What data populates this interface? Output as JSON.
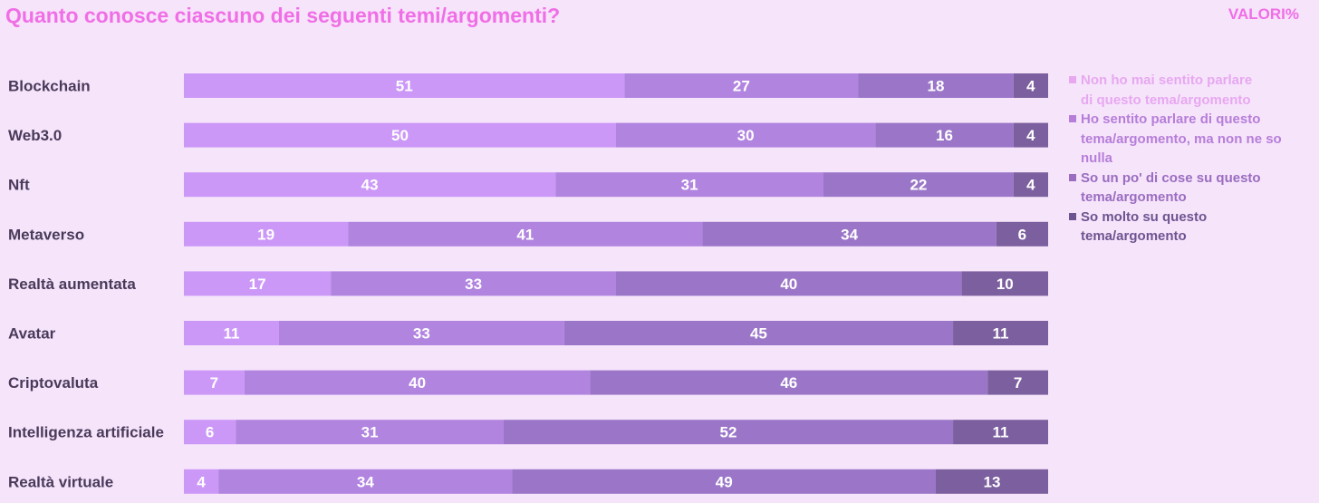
{
  "title": "Quanto conosce ciascuno dei seguenti temi/argomenti?",
  "unit_label": "VALORI%",
  "colors": {
    "title": "#f06ee6",
    "background": "#f6e4fb",
    "category_label": "#4a3a5a",
    "segment_label": "#ffffff"
  },
  "chart_data": {
    "type": "bar",
    "orientation": "horizontal",
    "stacked": true,
    "categories": [
      "Blockchain",
      "Web3.0",
      "Nft",
      "Metaverso",
      "Realtà aumentata",
      "Avatar",
      "Criptovaluta",
      "Intelligenza artificiale",
      "Realtà virtuale"
    ],
    "series": [
      {
        "name": "Non ho mai sentito parlare di questo tema/argomento",
        "color": "#cc98f8",
        "legend_color": "#e7a8f0",
        "values": [
          51,
          50,
          43,
          19,
          17,
          11,
          7,
          6,
          4
        ]
      },
      {
        "name": "Ho sentito parlare di questo tema/argomento, ma non ne so nulla",
        "color": "#b184e0",
        "legend_color": "#b67ed8",
        "values": [
          27,
          30,
          31,
          41,
          33,
          33,
          40,
          31,
          34
        ]
      },
      {
        "name": "So un po' di cose su questo tema/argomento",
        "color": "#9b76c8",
        "legend_color": "#9a6dc0",
        "values": [
          18,
          16,
          22,
          34,
          40,
          45,
          46,
          52,
          49
        ]
      },
      {
        "name": "So molto su questo tema/argomento",
        "color": "#7c5f9e",
        "legend_color": "#6e5490",
        "values": [
          4,
          4,
          4,
          6,
          10,
          11,
          7,
          11,
          13
        ]
      }
    ],
    "xlim": [
      0,
      100
    ],
    "grid": false,
    "legend_position": "right"
  }
}
